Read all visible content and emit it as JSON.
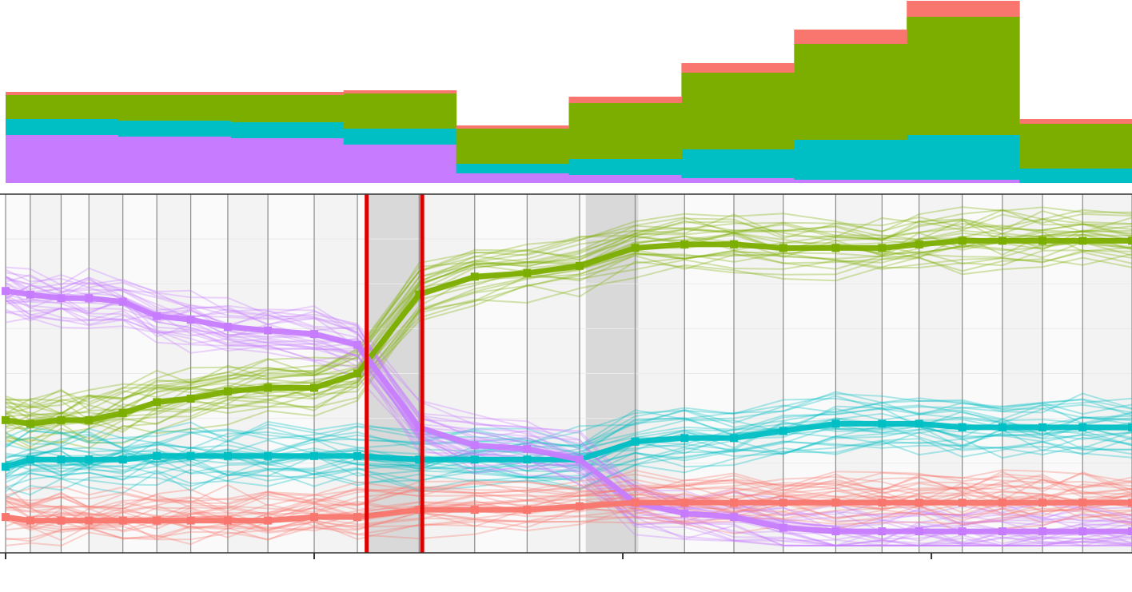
{
  "colors": {
    "red": "#F8766D",
    "green": "#7CAE00",
    "cyan": "#00BFC4",
    "purple": "#C77CFF",
    "marker": "#DD0000",
    "band": "#D9D9D9",
    "band_light": "#F3F3F3"
  },
  "chart_data": [
    {
      "type": "area",
      "stacking": "stacked",
      "x": [
        0,
        1,
        2,
        3,
        4,
        5,
        6,
        7,
        8,
        9
      ],
      "series": [
        {
          "color": "purple",
          "values": [
            0.3,
            0.29,
            0.28,
            0.24,
            0.06,
            0.05,
            0.03,
            0.02,
            0.02,
            0.0
          ]
        },
        {
          "color": "cyan",
          "values": [
            0.1,
            0.1,
            0.1,
            0.1,
            0.06,
            0.1,
            0.18,
            0.25,
            0.28,
            0.09
          ]
        },
        {
          "color": "green",
          "values": [
            0.15,
            0.16,
            0.17,
            0.22,
            0.22,
            0.35,
            0.48,
            0.6,
            0.74,
            0.28
          ]
        },
        {
          "color": "red",
          "values": [
            0.02,
            0.02,
            0.02,
            0.02,
            0.02,
            0.04,
            0.06,
            0.09,
            0.1,
            0.03
          ]
        }
      ]
    },
    {
      "type": "line",
      "x_ticks": [
        0,
        10,
        20,
        30
      ],
      "xlim": [
        0,
        36.5
      ],
      "ylim": [
        0,
        1
      ],
      "highlight_lines": [
        11.7,
        13.5
      ],
      "highlight_bands": [
        [
          11.7,
          13.5
        ],
        [
          18.8,
          20.5
        ]
      ],
      "mean_x": [
        0,
        0.8,
        1.8,
        2.7,
        3.8,
        4.9,
        6.0,
        7.2,
        8.5,
        10.0,
        11.4,
        13.4,
        15.2,
        16.9,
        18.6,
        20.4,
        22.0,
        23.6,
        25.2,
        26.9,
        28.4,
        29.6,
        31.0,
        32.3,
        33.6,
        34.9,
        36.5
      ],
      "series": [
        {
          "color": "green",
          "seed": 11,
          "values": [
            0.37,
            0.36,
            0.37,
            0.37,
            0.39,
            0.42,
            0.43,
            0.45,
            0.46,
            0.46,
            0.5,
            0.72,
            0.77,
            0.78,
            0.8,
            0.85,
            0.86,
            0.86,
            0.85,
            0.85,
            0.85,
            0.86,
            0.87,
            0.87,
            0.87,
            0.87,
            0.87
          ]
        },
        {
          "color": "cyan",
          "seed": 23,
          "values": [
            0.24,
            0.26,
            0.26,
            0.26,
            0.26,
            0.27,
            0.27,
            0.27,
            0.27,
            0.27,
            0.27,
            0.26,
            0.26,
            0.26,
            0.26,
            0.31,
            0.32,
            0.32,
            0.34,
            0.36,
            0.36,
            0.36,
            0.35,
            0.35,
            0.35,
            0.35,
            0.35
          ]
        },
        {
          "color": "purple",
          "seed": 37,
          "values": [
            0.73,
            0.72,
            0.71,
            0.71,
            0.7,
            0.66,
            0.65,
            0.63,
            0.62,
            0.61,
            0.58,
            0.35,
            0.3,
            0.29,
            0.26,
            0.14,
            0.11,
            0.1,
            0.07,
            0.06,
            0.06,
            0.06,
            0.06,
            0.06,
            0.06,
            0.06,
            0.06
          ]
        },
        {
          "color": "red",
          "seed": 53,
          "values": [
            0.1,
            0.09,
            0.09,
            0.09,
            0.09,
            0.09,
            0.09,
            0.09,
            0.09,
            0.1,
            0.1,
            0.12,
            0.12,
            0.12,
            0.13,
            0.14,
            0.14,
            0.14,
            0.14,
            0.14,
            0.14,
            0.14,
            0.14,
            0.14,
            0.14,
            0.14,
            0.14
          ]
        }
      ]
    }
  ]
}
